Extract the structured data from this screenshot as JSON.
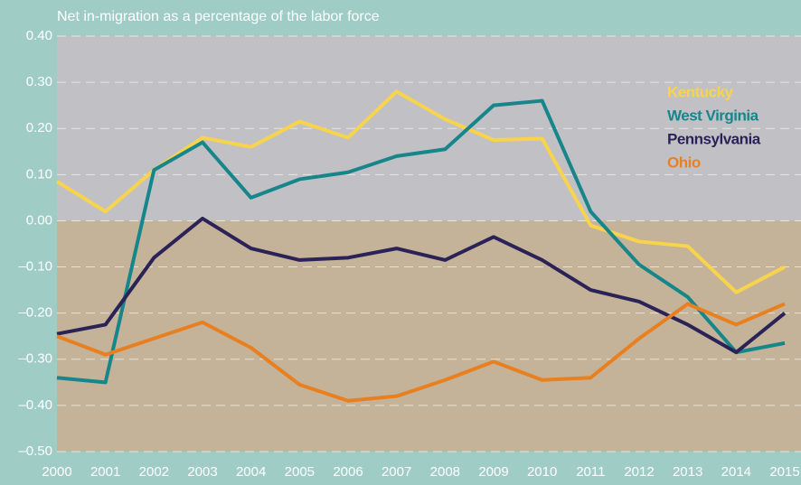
{
  "chart_data": {
    "type": "line",
    "title": "Net in-migration as a percentage of the labor force",
    "categories": [
      "2000",
      "2001",
      "2002",
      "2003",
      "2004",
      "2005",
      "2006",
      "2007",
      "2008",
      "2009",
      "2010",
      "2011",
      "2012",
      "2013",
      "2014",
      "2015"
    ],
    "ylim": [
      -0.5,
      0.4
    ],
    "yticks": [
      {
        "value": 0.4,
        "label": "0.40"
      },
      {
        "value": 0.3,
        "label": "0.30"
      },
      {
        "value": 0.2,
        "label": "0.20"
      },
      {
        "value": 0.1,
        "label": "0.10"
      },
      {
        "value": 0,
        "label": "0.00"
      },
      {
        "value": -0.1,
        "label": "–0.10"
      },
      {
        "value": -0.2,
        "label": "–0.20"
      },
      {
        "value": -0.3,
        "label": "–0.30"
      },
      {
        "value": -0.4,
        "label": "–0.40"
      },
      {
        "value": -0.5,
        "label": "–0.50"
      }
    ],
    "grid": true,
    "legend": "upper right",
    "series": [
      {
        "name": "Kentucky",
        "color": "#f8d44c",
        "values": [
          0.085,
          0.02,
          0.11,
          0.18,
          0.16,
          0.215,
          0.18,
          0.28,
          0.22,
          0.175,
          0.178,
          -0.01,
          -0.045,
          -0.055,
          -0.155,
          -0.1
        ]
      },
      {
        "name": "West Virginia",
        "color": "#16868a",
        "values": [
          -0.34,
          -0.35,
          0.11,
          0.17,
          0.05,
          0.09,
          0.105,
          0.14,
          0.155,
          0.25,
          0.26,
          0.02,
          -0.095,
          -0.165,
          -0.285,
          -0.265
        ]
      },
      {
        "name": "Pennsylvania",
        "color": "#2b2357",
        "values": [
          -0.245,
          -0.225,
          -0.08,
          0.005,
          -0.06,
          -0.085,
          -0.08,
          -0.06,
          -0.085,
          -0.035,
          -0.085,
          -0.15,
          -0.175,
          -0.225,
          -0.285,
          -0.2
        ]
      },
      {
        "name": "Ohio",
        "color": "#e9801f",
        "values": [
          -0.25,
          -0.29,
          -0.255,
          -0.22,
          -0.275,
          -0.355,
          -0.39,
          -0.38,
          -0.345,
          -0.305,
          -0.345,
          -0.34,
          -0.255,
          -0.18,
          -0.225,
          -0.18
        ]
      }
    ]
  }
}
